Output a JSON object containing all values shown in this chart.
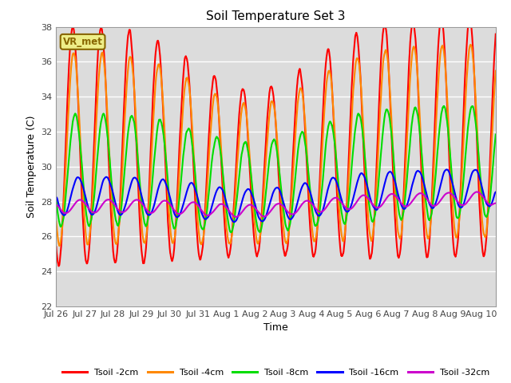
{
  "title": "Soil Temperature Set 3",
  "xlabel": "Time",
  "ylabel": "Soil Temperature (C)",
  "ylim": [
    22,
    38
  ],
  "yticks": [
    22,
    24,
    26,
    28,
    30,
    32,
    34,
    36,
    38
  ],
  "background_color": "#dcdcdc",
  "annotation_text": "VR_met",
  "annotation_bg": "#eeee88",
  "annotation_border": "#886600",
  "series_colors": {
    "Tsoil -2cm": "#ff0000",
    "Tsoil -4cm": "#ff8800",
    "Tsoil -8cm": "#00dd00",
    "Tsoil -16cm": "#0000ff",
    "Tsoil -32cm": "#cc00cc"
  },
  "xtick_labels": [
    "Jul 26",
    "Jul 27",
    "Jul 28",
    "Jul 29",
    "Jul 30",
    "Jul 31",
    "Aug 1",
    "Aug 2",
    "Aug 3",
    "Aug 4",
    "Aug 5",
    "Aug 6",
    "Aug 7",
    "Aug 8",
    "Aug 9",
    "Aug 10"
  ],
  "linewidth": 1.5,
  "total_days": 15.5,
  "figsize": [
    6.4,
    4.8
  ],
  "dpi": 100
}
